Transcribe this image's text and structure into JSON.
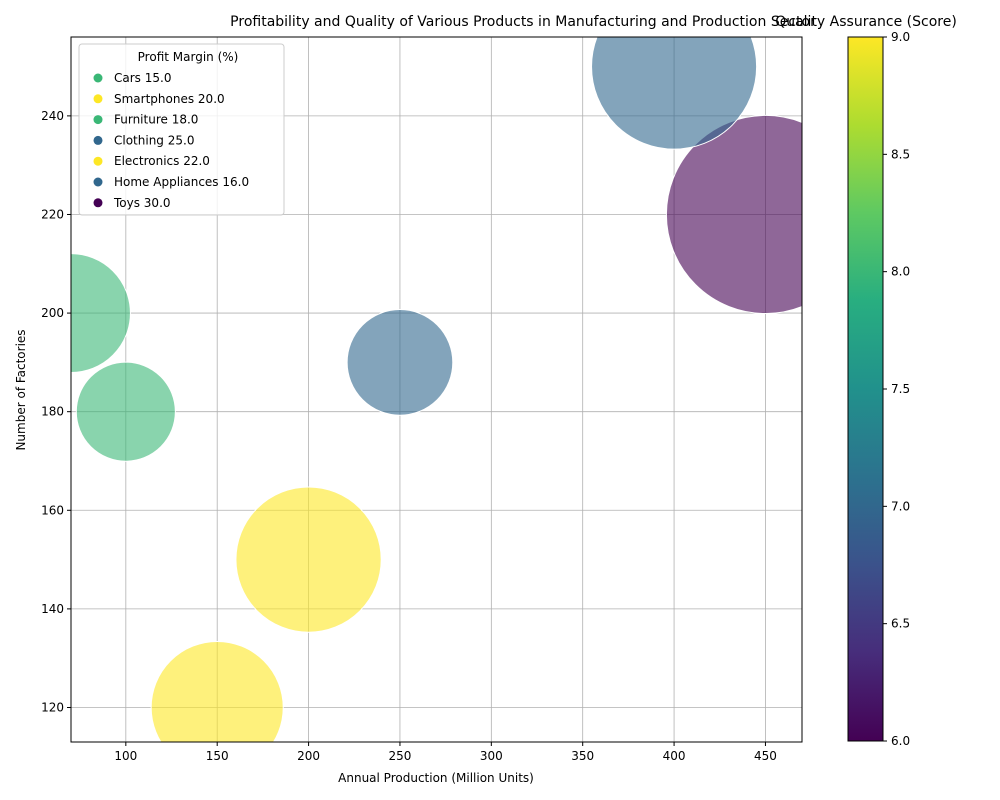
{
  "chart_data": {
    "type": "scatter",
    "title": "Profitability and Quality of Various Products in Manufacturing and Production Sector",
    "xlabel": "Annual Production (Million Units)",
    "ylabel": "Number of Factories",
    "xlim": [
      70,
      470
    ],
    "ylim": [
      113,
      256
    ],
    "xticks": [
      100,
      150,
      200,
      250,
      300,
      350,
      400,
      450
    ],
    "yticks": [
      120,
      140,
      160,
      180,
      200,
      220,
      240
    ],
    "grid": true,
    "legend_title": "Profit Margin (%)",
    "legend_position": "top-left",
    "colorbar": {
      "title": "Quality Assurance (Score)",
      "min": 6.0,
      "max": 9.0,
      "ticks": [
        "6.0",
        "6.5",
        "7.0",
        "7.5",
        "8.0",
        "8.5",
        "9.0"
      ],
      "colormap": "viridis"
    },
    "points": [
      {
        "product": "Cars",
        "annual_production": 100,
        "factories": 180,
        "profit_margin": 15.0,
        "quality_score": 8,
        "legend_label": "Cars 15.0"
      },
      {
        "product": "Smartphones",
        "annual_production": 150,
        "factories": 120,
        "profit_margin": 20.0,
        "quality_score": 9,
        "legend_label": "Smartphones 20.0"
      },
      {
        "product": "Furniture",
        "annual_production": 70,
        "factories": 200,
        "profit_margin": 18.0,
        "quality_score": 8,
        "legend_label": "Furniture 18.0"
      },
      {
        "product": "Clothing",
        "annual_production": 400,
        "factories": 250,
        "profit_margin": 25.0,
        "quality_score": 7,
        "legend_label": "Clothing 25.0"
      },
      {
        "product": "Electronics",
        "annual_production": 200,
        "factories": 150,
        "profit_margin": 22.0,
        "quality_score": 9,
        "legend_label": "Electronics 22.0"
      },
      {
        "product": "Home Appliances",
        "annual_production": 250,
        "factories": 190,
        "profit_margin": 16.0,
        "quality_score": 7,
        "legend_label": "Home Appliances 16.0"
      },
      {
        "product": "Toys",
        "annual_production": 450,
        "factories": 220,
        "profit_margin": 30.0,
        "quality_score": 6,
        "legend_label": "Toys 30.0"
      }
    ]
  }
}
